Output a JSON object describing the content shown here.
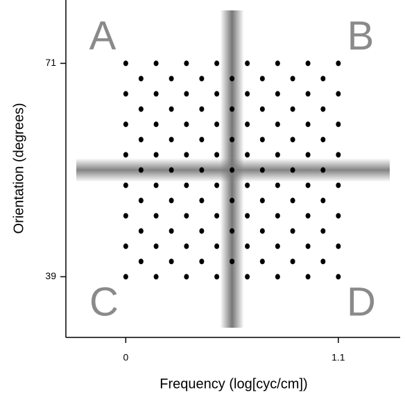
{
  "chart_data": {
    "type": "scatter",
    "xlabel": "Frequency (log[cyc/cm])",
    "ylabel": "Orientation (degrees)",
    "annotations": [
      "A",
      "B",
      "C",
      "D"
    ],
    "xlim": [
      -0.31,
      1.42
    ],
    "ylim": [
      29.9,
      80.5
    ],
    "xticks": [
      0,
      1.1
    ],
    "yticks": [
      39,
      71
    ],
    "color": "#000000",
    "crosshair": {
      "x": 0.55,
      "y": 55
    },
    "x": [
      0,
      0.157,
      0.314,
      0.471,
      0.629,
      0.786,
      0.943,
      1.1,
      0.079,
      0.236,
      0.393,
      0.55,
      0.707,
      0.864,
      1.021,
      0,
      0.157,
      0.314,
      0.471,
      0.629,
      0.786,
      0.943,
      1.1,
      0.079,
      0.236,
      0.393,
      0.55,
      0.707,
      0.864,
      1.021,
      0,
      0.157,
      0.314,
      0.471,
      0.629,
      0.786,
      0.943,
      1.1,
      0.079,
      0.236,
      0.393,
      0.55,
      0.707,
      0.864,
      1.021,
      0,
      0.157,
      0.314,
      0.471,
      0.629,
      0.786,
      0.943,
      1.1,
      0.079,
      0.236,
      0.393,
      0.55,
      0.707,
      0.864,
      1.021,
      0,
      0.157,
      0.314,
      0.471,
      0.629,
      0.786,
      0.943,
      1.1,
      0.079,
      0.236,
      0.393,
      0.55,
      0.707,
      0.864,
      1.021,
      0,
      0.157,
      0.314,
      0.471,
      0.629,
      0.786,
      0.943,
      1.1,
      0.079,
      0.236,
      0.393,
      0.55,
      0.707,
      0.864,
      1.021,
      0,
      0.157,
      0.314,
      0.471,
      0.629,
      0.786,
      0.943,
      1.1,
      0.079,
      0.236,
      0.393,
      0.55,
      0.707,
      0.864,
      1.021,
      0,
      0.157,
      0.314,
      0.471,
      0.629,
      0.786,
      0.943,
      1.1
    ],
    "y": [
      71,
      71,
      71,
      71,
      71,
      71,
      71,
      71,
      68.71,
      68.71,
      68.71,
      68.71,
      68.71,
      68.71,
      68.71,
      66.43,
      66.43,
      66.43,
      66.43,
      66.43,
      66.43,
      66.43,
      66.43,
      64.14,
      64.14,
      64.14,
      64.14,
      64.14,
      64.14,
      64.14,
      61.86,
      61.86,
      61.86,
      61.86,
      61.86,
      61.86,
      61.86,
      61.86,
      59.57,
      59.57,
      59.57,
      59.57,
      59.57,
      59.57,
      59.57,
      57.29,
      57.29,
      57.29,
      57.29,
      57.29,
      57.29,
      57.29,
      57.29,
      55,
      55,
      55,
      55,
      55,
      55,
      55,
      52.71,
      52.71,
      52.71,
      52.71,
      52.71,
      52.71,
      52.71,
      52.71,
      50.43,
      50.43,
      50.43,
      50.43,
      50.43,
      50.43,
      50.43,
      48.14,
      48.14,
      48.14,
      48.14,
      48.14,
      48.14,
      48.14,
      48.14,
      45.86,
      45.86,
      45.86,
      45.86,
      45.86,
      45.86,
      45.86,
      43.57,
      43.57,
      43.57,
      43.57,
      43.57,
      43.57,
      43.57,
      43.57,
      41.29,
      41.29,
      41.29,
      41.29,
      41.29,
      41.29,
      41.29,
      39,
      39,
      39,
      39,
      39,
      39,
      39,
      39
    ]
  }
}
